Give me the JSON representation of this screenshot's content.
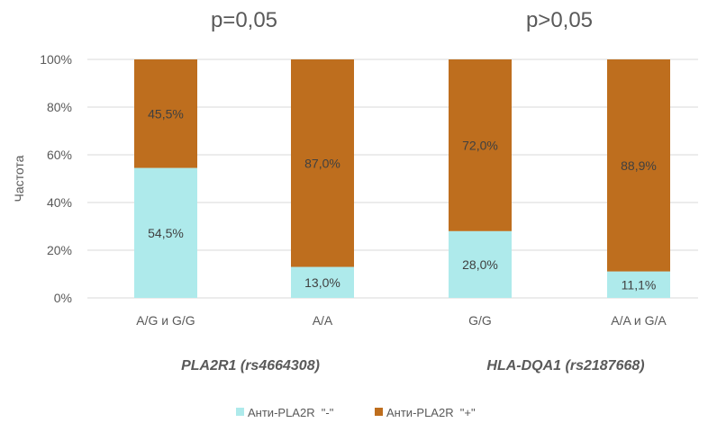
{
  "chart_data": {
    "type": "bar",
    "stacked": "percent",
    "ylabel": "Частота",
    "y_ticks": [
      "0%",
      "20%",
      "40%",
      "60%",
      "80%",
      "100%"
    ],
    "ylim": [
      0,
      100
    ],
    "categories": [
      "A/G и G/G",
      "A/A",
      "G/G",
      "A/A и G/A"
    ],
    "groups": [
      {
        "label": "PLA2R1 (rs4664308)",
        "p_value": "p=0,05",
        "categories": [
          0,
          1
        ]
      },
      {
        "label": "HLA-DQA1 (rs2187668)",
        "p_value": "p>0,05",
        "categories": [
          2,
          3
        ]
      }
    ],
    "series": [
      {
        "name": "Анти-PLA2R  \"-\"",
        "color": "#aeeaeb",
        "values": [
          54.5,
          13.0,
          28.0,
          11.1
        ],
        "labels": [
          "54,5%",
          "13,0%",
          "28,0%",
          "11,1%"
        ]
      },
      {
        "name": "Анти-PLA2R  \"+\"",
        "color": "#be6e1e",
        "values": [
          45.5,
          87.0,
          72.0,
          88.9
        ],
        "labels": [
          "45,5%",
          "87,0%",
          "72,0%",
          "88,9%"
        ]
      }
    ],
    "grid": true,
    "legend_position": "bottom"
  }
}
